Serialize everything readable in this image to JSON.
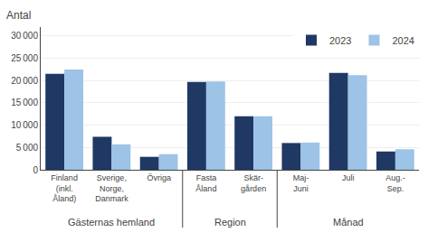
{
  "chart_data": {
    "type": "bar",
    "categories": [
      "Finland\n(inkl.\nÅland)",
      "Sverige,\nNorge,\nDanmark",
      "Övriga",
      "Fasta\nÅland",
      "Skär-\ngården",
      "Maj-\nJuni",
      "Juli",
      "Aug.-\nSep."
    ],
    "series": [
      {
        "name": "2023",
        "color": "#1F3864",
        "values": [
          21500,
          7400,
          2900,
          19700,
          12000,
          6000,
          21700,
          4100
        ]
      },
      {
        "name": "2024",
        "color": "#9DC3E6",
        "values": [
          22500,
          5700,
          3500,
          19800,
          12000,
          6100,
          21200,
          4600
        ]
      }
    ],
    "ylabel": "Antal",
    "annotations": [
      {
        "text": "Gästernas hemland",
        "categories": [
          "Finland\n(inkl.\nÅland)",
          "Sverige,\nNorge,\nDanmark",
          "Övriga"
        ]
      },
      {
        "text": "Region",
        "categories": [
          "Fasta\nÅland",
          "Skär-\ngården"
        ]
      },
      {
        "text": "Månad",
        "categories": [
          "Maj-\nJuni",
          "Juli",
          "Aug.-\nSep."
        ]
      }
    ],
    "ylim": [
      0,
      32000
    ],
    "yticks": [
      0,
      {
        "value": 5000,
        "label": "5 000"
      },
      {
        "value": 10000,
        "label": "10 000"
      },
      {
        "value": 15000,
        "label": "15 000"
      },
      {
        "value": 20000,
        "label": "20 000"
      },
      {
        "value": 25000,
        "label": "25 000"
      },
      {
        "value": 30000,
        "label": "30 000"
      }
    ],
    "grid": true,
    "legend": "upper right"
  }
}
